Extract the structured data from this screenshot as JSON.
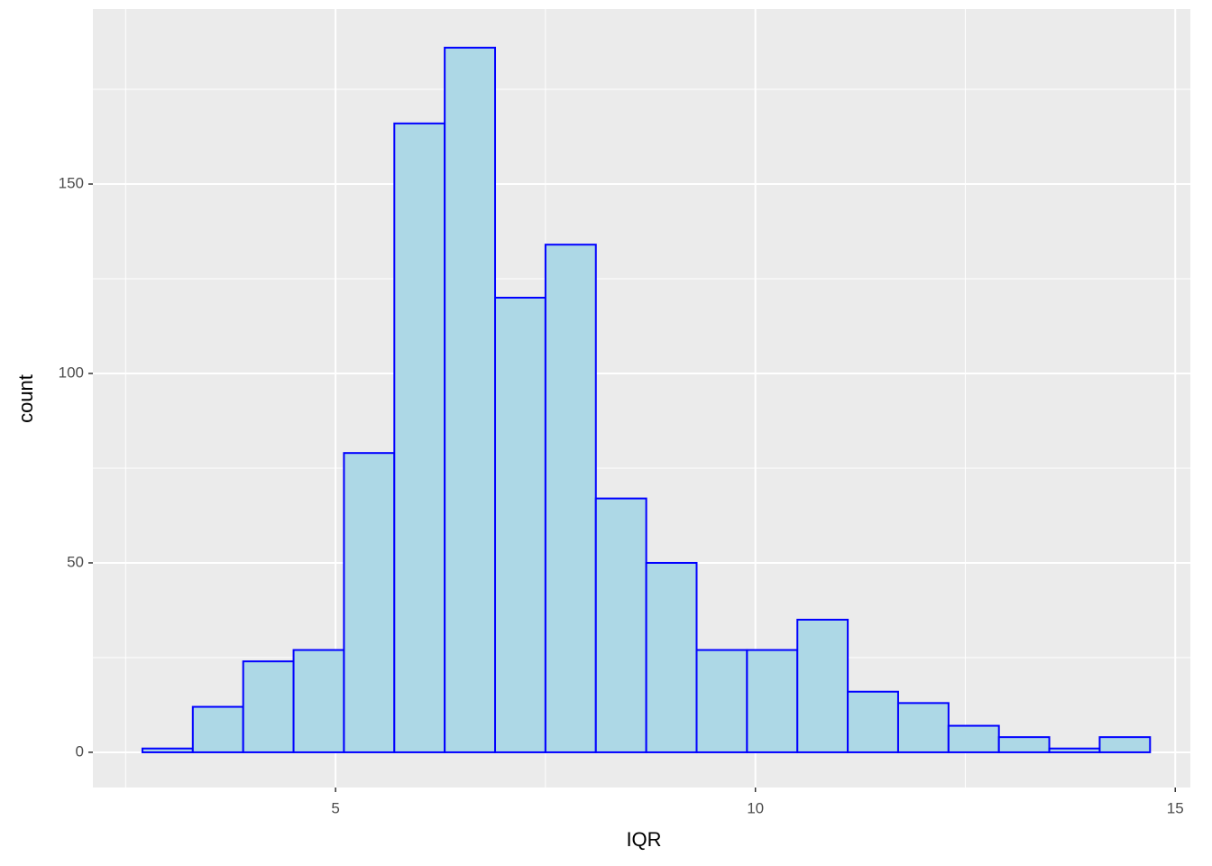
{
  "chart_data": {
    "type": "histogram",
    "x_label": "IQR",
    "y_label": "count",
    "bins": [
      2.7,
      3.3,
      3.9,
      4.5,
      5.1,
      5.7,
      6.3,
      6.9,
      7.5,
      8.1,
      8.7,
      9.3,
      9.9,
      10.5,
      11.1,
      11.7,
      12.3,
      12.9,
      13.5,
      14.1,
      14.7
    ],
    "values": [
      1,
      12,
      24,
      27,
      79,
      166,
      186,
      120,
      134,
      67,
      50,
      27,
      27,
      35,
      16,
      13,
      7,
      4,
      1,
      4
    ],
    "fill": "#add8e6",
    "color": "#0000ff",
    "xlim": [
      2.11,
      15.18
    ],
    "xticks": [
      5,
      10,
      15
    ],
    "minor_xticks": [
      2.5,
      7.5,
      12.5
    ],
    "ylim": [
      -9.3,
      196.2
    ],
    "yticks": [
      0,
      50,
      100,
      150
    ],
    "minor_yticks": [
      25,
      75,
      125,
      175
    ],
    "grid": true
  }
}
